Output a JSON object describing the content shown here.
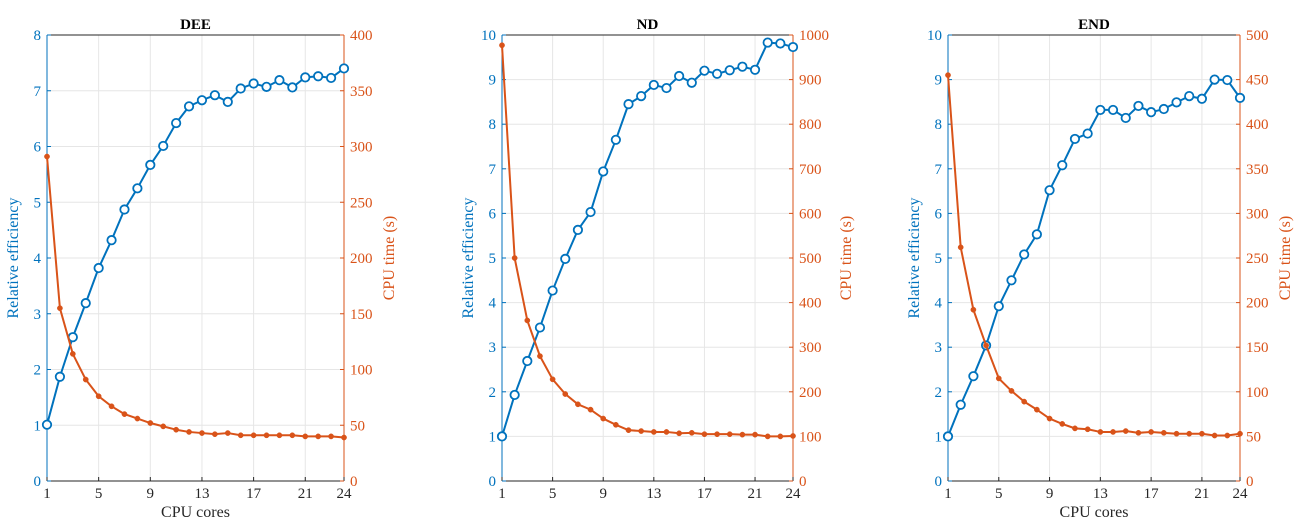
{
  "colors": {
    "efficiency": "#0072BD",
    "cpu_time": "#D95319",
    "grid": "#e6e6e6",
    "axis": "#262626"
  },
  "chart_data": [
    {
      "type": "line",
      "title": "DEE",
      "xlabel": "CPU cores",
      "ylabel_left": "Relative efficiency",
      "ylabel_right": "CPU time (s)",
      "xlim": [
        1,
        24
      ],
      "xticks": [
        1,
        5,
        9,
        13,
        17,
        21,
        24
      ],
      "ylim_left": [
        0,
        8
      ],
      "yticks_left": [
        0,
        1,
        2,
        3,
        4,
        5,
        6,
        7,
        8
      ],
      "ylim_right": [
        0,
        400
      ],
      "yticks_right": [
        0,
        50,
        100,
        150,
        200,
        250,
        300,
        350,
        400
      ],
      "grid": true,
      "x": [
        1,
        2,
        3,
        4,
        5,
        6,
        7,
        8,
        9,
        10,
        11,
        12,
        13,
        14,
        15,
        16,
        17,
        18,
        19,
        20,
        21,
        22,
        23,
        24
      ],
      "series": [
        {
          "name": "Relative efficiency",
          "axis": "left",
          "marker": "circle",
          "values": [
            1.01,
            1.87,
            2.58,
            3.19,
            3.82,
            4.32,
            4.87,
            5.25,
            5.67,
            6.01,
            6.42,
            6.72,
            6.83,
            6.92,
            6.8,
            7.04,
            7.13,
            7.07,
            7.19,
            7.06,
            7.24,
            7.26,
            7.23,
            7.4
          ]
        },
        {
          "name": "CPU time (s)",
          "axis": "right",
          "marker": "dot",
          "values": [
            291,
            155,
            114,
            91,
            76,
            67,
            60,
            56,
            52,
            49,
            46,
            44,
            43,
            42,
            43,
            41,
            41,
            41,
            41,
            41,
            40,
            40,
            40,
            39
          ]
        }
      ]
    },
    {
      "type": "line",
      "title": "ND",
      "xlabel": "",
      "ylabel_left": "Relative efficiency",
      "ylabel_right": "CPU time (s)",
      "xlim": [
        1,
        24
      ],
      "xticks": [
        1,
        5,
        9,
        13,
        17,
        21,
        24
      ],
      "ylim_left": [
        0,
        10
      ],
      "yticks_left": [
        0,
        1,
        2,
        3,
        4,
        5,
        6,
        7,
        8,
        9,
        10
      ],
      "ylim_right": [
        0,
        1000
      ],
      "yticks_right": [
        0,
        100,
        200,
        300,
        400,
        500,
        600,
        700,
        800,
        900,
        1000
      ],
      "grid": true,
      "x": [
        1,
        2,
        3,
        4,
        5,
        6,
        7,
        8,
        9,
        10,
        11,
        12,
        13,
        14,
        15,
        16,
        17,
        18,
        19,
        20,
        21,
        22,
        23,
        24
      ],
      "series": [
        {
          "name": "Relative efficiency",
          "axis": "left",
          "marker": "circle",
          "values": [
            1.0,
            1.93,
            2.69,
            3.44,
            4.27,
            4.98,
            5.63,
            6.03,
            6.94,
            7.65,
            8.45,
            8.63,
            8.88,
            8.81,
            9.08,
            8.93,
            9.2,
            9.13,
            9.21,
            9.29,
            9.22,
            9.83,
            9.81,
            9.73
          ]
        },
        {
          "name": "CPU time (s)",
          "axis": "right",
          "marker": "dot",
          "values": [
            977,
            500,
            360,
            280,
            228,
            195,
            172,
            160,
            140,
            126,
            114,
            112,
            110,
            110,
            107,
            108,
            105,
            105,
            105,
            104,
            104,
            100,
            100,
            101
          ]
        }
      ]
    },
    {
      "type": "line",
      "title": "END",
      "xlabel": "CPU cores",
      "ylabel_left": "Relative efficiency",
      "ylabel_right": "CPU time (s)",
      "xlim": [
        1,
        24
      ],
      "xticks": [
        1,
        5,
        9,
        13,
        17,
        21,
        24
      ],
      "ylim_left": [
        0,
        10
      ],
      "yticks_left": [
        0,
        1,
        2,
        3,
        4,
        5,
        6,
        7,
        8,
        9,
        10
      ],
      "ylim_right": [
        0,
        500
      ],
      "yticks_right": [
        0,
        50,
        100,
        150,
        200,
        250,
        300,
        350,
        400,
        450,
        500
      ],
      "grid": true,
      "x": [
        1,
        2,
        3,
        4,
        5,
        6,
        7,
        8,
        9,
        10,
        11,
        12,
        13,
        14,
        15,
        16,
        17,
        18,
        19,
        20,
        21,
        22,
        23,
        24
      ],
      "series": [
        {
          "name": "Relative efficiency",
          "axis": "left",
          "marker": "circle",
          "values": [
            1.0,
            1.71,
            2.35,
            3.04,
            3.92,
            4.5,
            5.08,
            5.53,
            6.52,
            7.08,
            7.67,
            7.79,
            8.32,
            8.32,
            8.14,
            8.41,
            8.27,
            8.34,
            8.49,
            8.63,
            8.57,
            9.0,
            8.99,
            8.59
          ]
        },
        {
          "name": "CPU time (s)",
          "axis": "right",
          "marker": "dot",
          "values": [
            455,
            262,
            192,
            152,
            115,
            101,
            89,
            80,
            70,
            64,
            59,
            58,
            55,
            55,
            56,
            54,
            55,
            54,
            53,
            53,
            53,
            51,
            51,
            53
          ]
        }
      ]
    }
  ]
}
